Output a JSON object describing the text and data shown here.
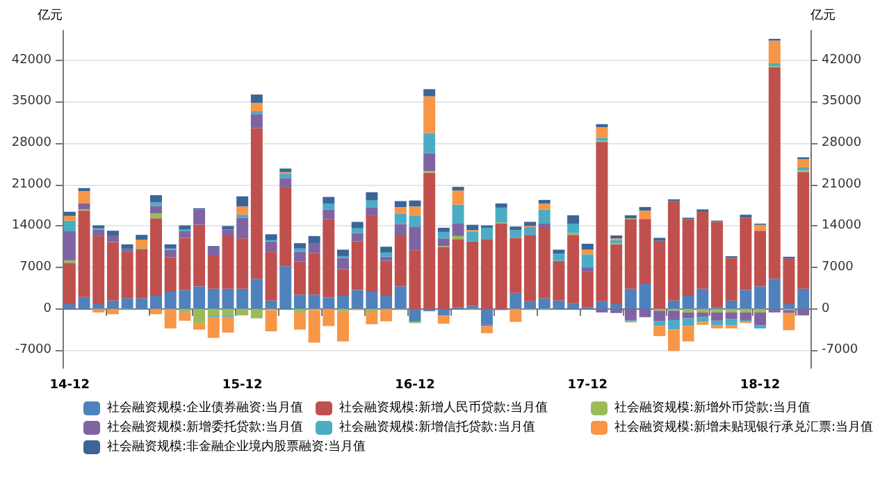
{
  "chart_data": {
    "type": "bar",
    "stacked": true,
    "ylabel": "亿元",
    "y2label": "亿元",
    "categories": [
      "14-12",
      null,
      null,
      null,
      null,
      null,
      null,
      null,
      null,
      null,
      null,
      null,
      "15-12",
      null,
      null,
      null,
      null,
      null,
      null,
      null,
      null,
      null,
      null,
      null,
      "16-12",
      null,
      null,
      null,
      null,
      null,
      null,
      null,
      null,
      null,
      null,
      null,
      "17-12",
      null,
      null,
      null,
      null,
      null,
      null,
      null,
      null,
      null,
      null,
      null,
      "18-12",
      null,
      null,
      null
    ],
    "ylim": [
      -10000,
      47000
    ],
    "yticks": [
      -7000,
      0,
      7000,
      14000,
      21000,
      28000,
      35000,
      42000
    ],
    "y2lim": [
      -10000,
      47000
    ],
    "y2ticks": [
      -7000,
      0,
      7000,
      14000,
      21000,
      28000,
      35000,
      42000
    ],
    "grid": "y",
    "legend": "bottom",
    "series": [
      {
        "name": "社会融资规模:企业债券融资:当月值",
        "color": "#4f81bd",
        "values": [
          800,
          2000,
          800,
          1400,
          1800,
          1800,
          2200,
          2900,
          3200,
          3800,
          3400,
          3400,
          3400,
          5100,
          1400,
          7200,
          2400,
          2400,
          1900,
          2200,
          3200,
          2900,
          2200,
          3800,
          -2200,
          -400,
          -1100,
          300,
          500,
          -2700,
          -200,
          2700,
          1300,
          1800,
          1400,
          1000,
          300,
          1300,
          800,
          3400,
          4200,
          0,
          1400,
          2200,
          3400,
          300,
          1400,
          3200,
          3800,
          5100,
          800,
          3400
        ]
      },
      {
        "name": "社会融资规模:新增人民币贷款:当月值",
        "color": "#c0504d",
        "values": [
          6900,
          14600,
          11500,
          9900,
          7800,
          8300,
          13100,
          5800,
          8800,
          10400,
          5600,
          9000,
          8500,
          25400,
          8200,
          13300,
          5600,
          7000,
          13300,
          4500,
          8200,
          12800,
          5900,
          8600,
          9900,
          23000,
          10400,
          11500,
          10900,
          11800,
          14400,
          9300,
          11200,
          12000,
          6700,
          11500,
          5900,
          26900,
          10100,
          11700,
          11000,
          11500,
          16800,
          13000,
          13100,
          14400,
          7200,
          12200,
          9400,
          35700,
          7700,
          19700
        ]
      },
      {
        "name": "社会融资规模:新增外币贷款:当月值",
        "color": "#9bbb59",
        "values": [
          500,
          200,
          0,
          0,
          -200,
          300,
          800,
          0,
          -600,
          -2400,
          -1200,
          -1200,
          -1100,
          -1600,
          -200,
          0,
          -600,
          -200,
          0,
          -400,
          0,
          -500,
          0,
          -200,
          -200,
          300,
          200,
          500,
          -200,
          0,
          200,
          0,
          -200,
          -200,
          0,
          300,
          0,
          200,
          200,
          200,
          0,
          -300,
          -300,
          -600,
          -600,
          -600,
          -600,
          -600,
          -600,
          200,
          -200,
          300
        ]
      },
      {
        "name": "社会融资规模:新增委托贷款:当月值",
        "color": "#8064a2",
        "values": [
          4900,
          1000,
          1100,
          1100,
          500,
          0,
          1300,
          1300,
          1100,
          2600,
          1400,
          1000,
          3500,
          2400,
          1800,
          1600,
          1600,
          1700,
          1600,
          1900,
          1400,
          1400,
          700,
          1900,
          4000,
          3000,
          1300,
          2100,
          0,
          -200,
          0,
          0,
          0,
          600,
          0,
          0,
          800,
          -600,
          -700,
          -1900,
          -1400,
          -1800,
          -1600,
          -1000,
          -800,
          -1400,
          -1100,
          -1300,
          -2200,
          -600,
          -500,
          -1100
        ]
      },
      {
        "name": "社会融资规模:新增信托贷款:当月值",
        "color": "#4bacc6",
        "values": [
          1800,
          0,
          200,
          0,
          0,
          -100,
          600,
          200,
          300,
          0,
          -200,
          -200,
          500,
          500,
          200,
          800,
          600,
          0,
          1000,
          300,
          800,
          1200,
          700,
          1800,
          1800,
          3400,
          1100,
          3200,
          1600,
          1900,
          2500,
          1300,
          1300,
          2400,
          1200,
          1600,
          2200,
          500,
          500,
          -200,
          0,
          -800,
          -1600,
          -1300,
          -800,
          -800,
          -1100,
          -300,
          -500,
          500,
          0,
          500
        ]
      },
      {
        "name": "社会融资规模:新增未贴现银行承兑汇票:当月值",
        "color": "#f79646",
        "values": [
          800,
          2100,
          -600,
          -900,
          0,
          1300,
          -900,
          -3300,
          -1400,
          -1100,
          -3500,
          -2600,
          1400,
          1400,
          -3600,
          200,
          -2900,
          -5500,
          -2900,
          -5100,
          -200,
          -2100,
          -2100,
          1100,
          1600,
          6200,
          -1400,
          2400,
          300,
          -1200,
          0,
          -2200,
          200,
          1000,
          0,
          0,
          800,
          1800,
          300,
          -200,
          1400,
          -1700,
          -3600,
          -2600,
          -500,
          -500,
          -500,
          -200,
          1000,
          3800,
          -2900,
          1400
        ]
      },
      {
        "name": "社会融资规模:非金融企业境内股票融资:当月值",
        "color": "#3a6598",
        "values": [
          700,
          500,
          500,
          800,
          800,
          800,
          1200,
          700,
          700,
          200,
          200,
          600,
          1700,
          1400,
          1000,
          600,
          900,
          1200,
          1100,
          1100,
          1100,
          1400,
          1000,
          1000,
          1000,
          1200,
          700,
          600,
          900,
          400,
          700,
          600,
          700,
          600,
          700,
          1400,
          1000,
          500,
          500,
          500,
          600,
          500,
          300,
          200,
          300,
          200,
          300,
          500,
          200,
          300,
          300,
          300
        ]
      }
    ]
  }
}
